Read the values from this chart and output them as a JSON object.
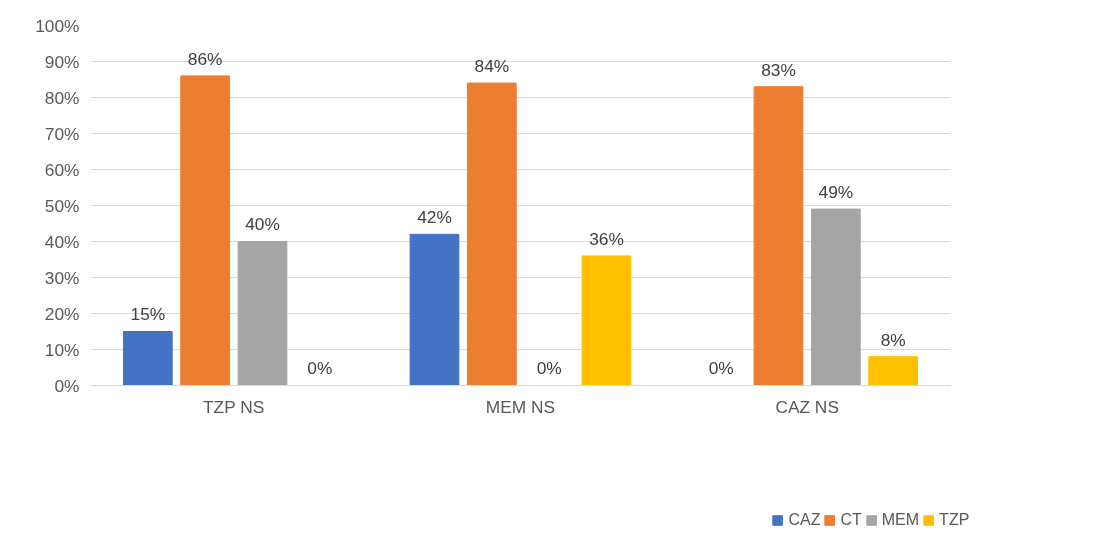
{
  "chart_data": {
    "type": "bar",
    "categories": [
      "TZP NS",
      "MEM NS",
      "CAZ NS"
    ],
    "series": [
      {
        "name": "CAZ",
        "color": "#4472c4",
        "values": [
          15,
          42,
          0
        ],
        "value_labels": [
          "15%",
          "42%",
          "0%"
        ]
      },
      {
        "name": "CT",
        "color": "#ed7d31",
        "values": [
          86,
          84,
          83
        ],
        "value_labels": [
          "86%",
          "84%",
          "83%"
        ]
      },
      {
        "name": "MEM",
        "color": "#a5a5a5",
        "values": [
          40,
          0,
          49
        ],
        "value_labels": [
          "40%",
          "0%",
          "49%"
        ]
      },
      {
        "name": "TZP",
        "color": "#ffc000",
        "values": [
          0,
          36,
          8
        ],
        "value_labels": [
          "0%",
          "36%",
          "8%"
        ]
      }
    ],
    "ylim": [
      0,
      100
    ],
    "yticks": [
      {
        "value": 0,
        "label": "0%"
      },
      {
        "value": 10,
        "label": "10%"
      },
      {
        "value": 20,
        "label": "20%"
      },
      {
        "value": 30,
        "label": "30%"
      },
      {
        "value": 40,
        "label": "40%"
      },
      {
        "value": 50,
        "label": "50%"
      },
      {
        "value": 60,
        "label": "60%"
      },
      {
        "value": 70,
        "label": "70%"
      },
      {
        "value": 80,
        "label": "80%"
      },
      {
        "value": 90,
        "label": "90%"
      },
      {
        "value": 100,
        "label": "100%"
      }
    ],
    "grid": "y",
    "legend": "bottom"
  }
}
